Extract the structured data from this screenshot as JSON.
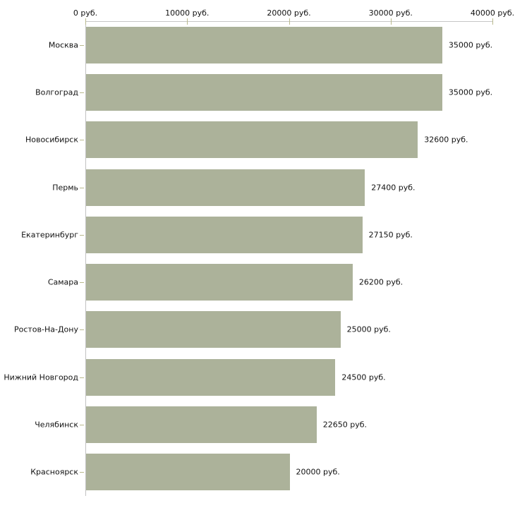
{
  "chart_data": {
    "type": "bar",
    "orientation": "horizontal",
    "title": "",
    "xlabel": "",
    "ylabel": "",
    "unit": "руб.",
    "categories": [
      "Москва",
      "Волгоград",
      "Новосибирск",
      "Пермь",
      "Екатеринбург",
      "Самара",
      "Ростов-На-Дону",
      "Нижний Новгород",
      "Челябинск",
      "Красноярск"
    ],
    "values": [
      35000,
      35000,
      32600,
      27400,
      27150,
      26200,
      25000,
      24500,
      22650,
      20000
    ],
    "value_labels": [
      "35000 руб.",
      "35000 руб.",
      "32600 руб.",
      "27400 руб.",
      "27150 руб.",
      "26200 руб.",
      "25000 руб.",
      "24500 руб.",
      "22650 руб.",
      "20000 руб."
    ],
    "x_axis": {
      "position": "top",
      "min": 0,
      "max": 40000,
      "ticks": [
        0,
        10000,
        20000,
        30000,
        40000
      ],
      "tick_labels": [
        "0 руб.",
        "10000 руб.",
        "20000 руб.",
        "30000 руб.",
        "40000 руб."
      ]
    },
    "grid": false,
    "legend": false,
    "colors": {
      "bar": "#acb29a",
      "axis_line": "#c6c6c6",
      "tick_mark": "#b9b98d",
      "text": "#111111",
      "background": "#ffffff"
    }
  }
}
